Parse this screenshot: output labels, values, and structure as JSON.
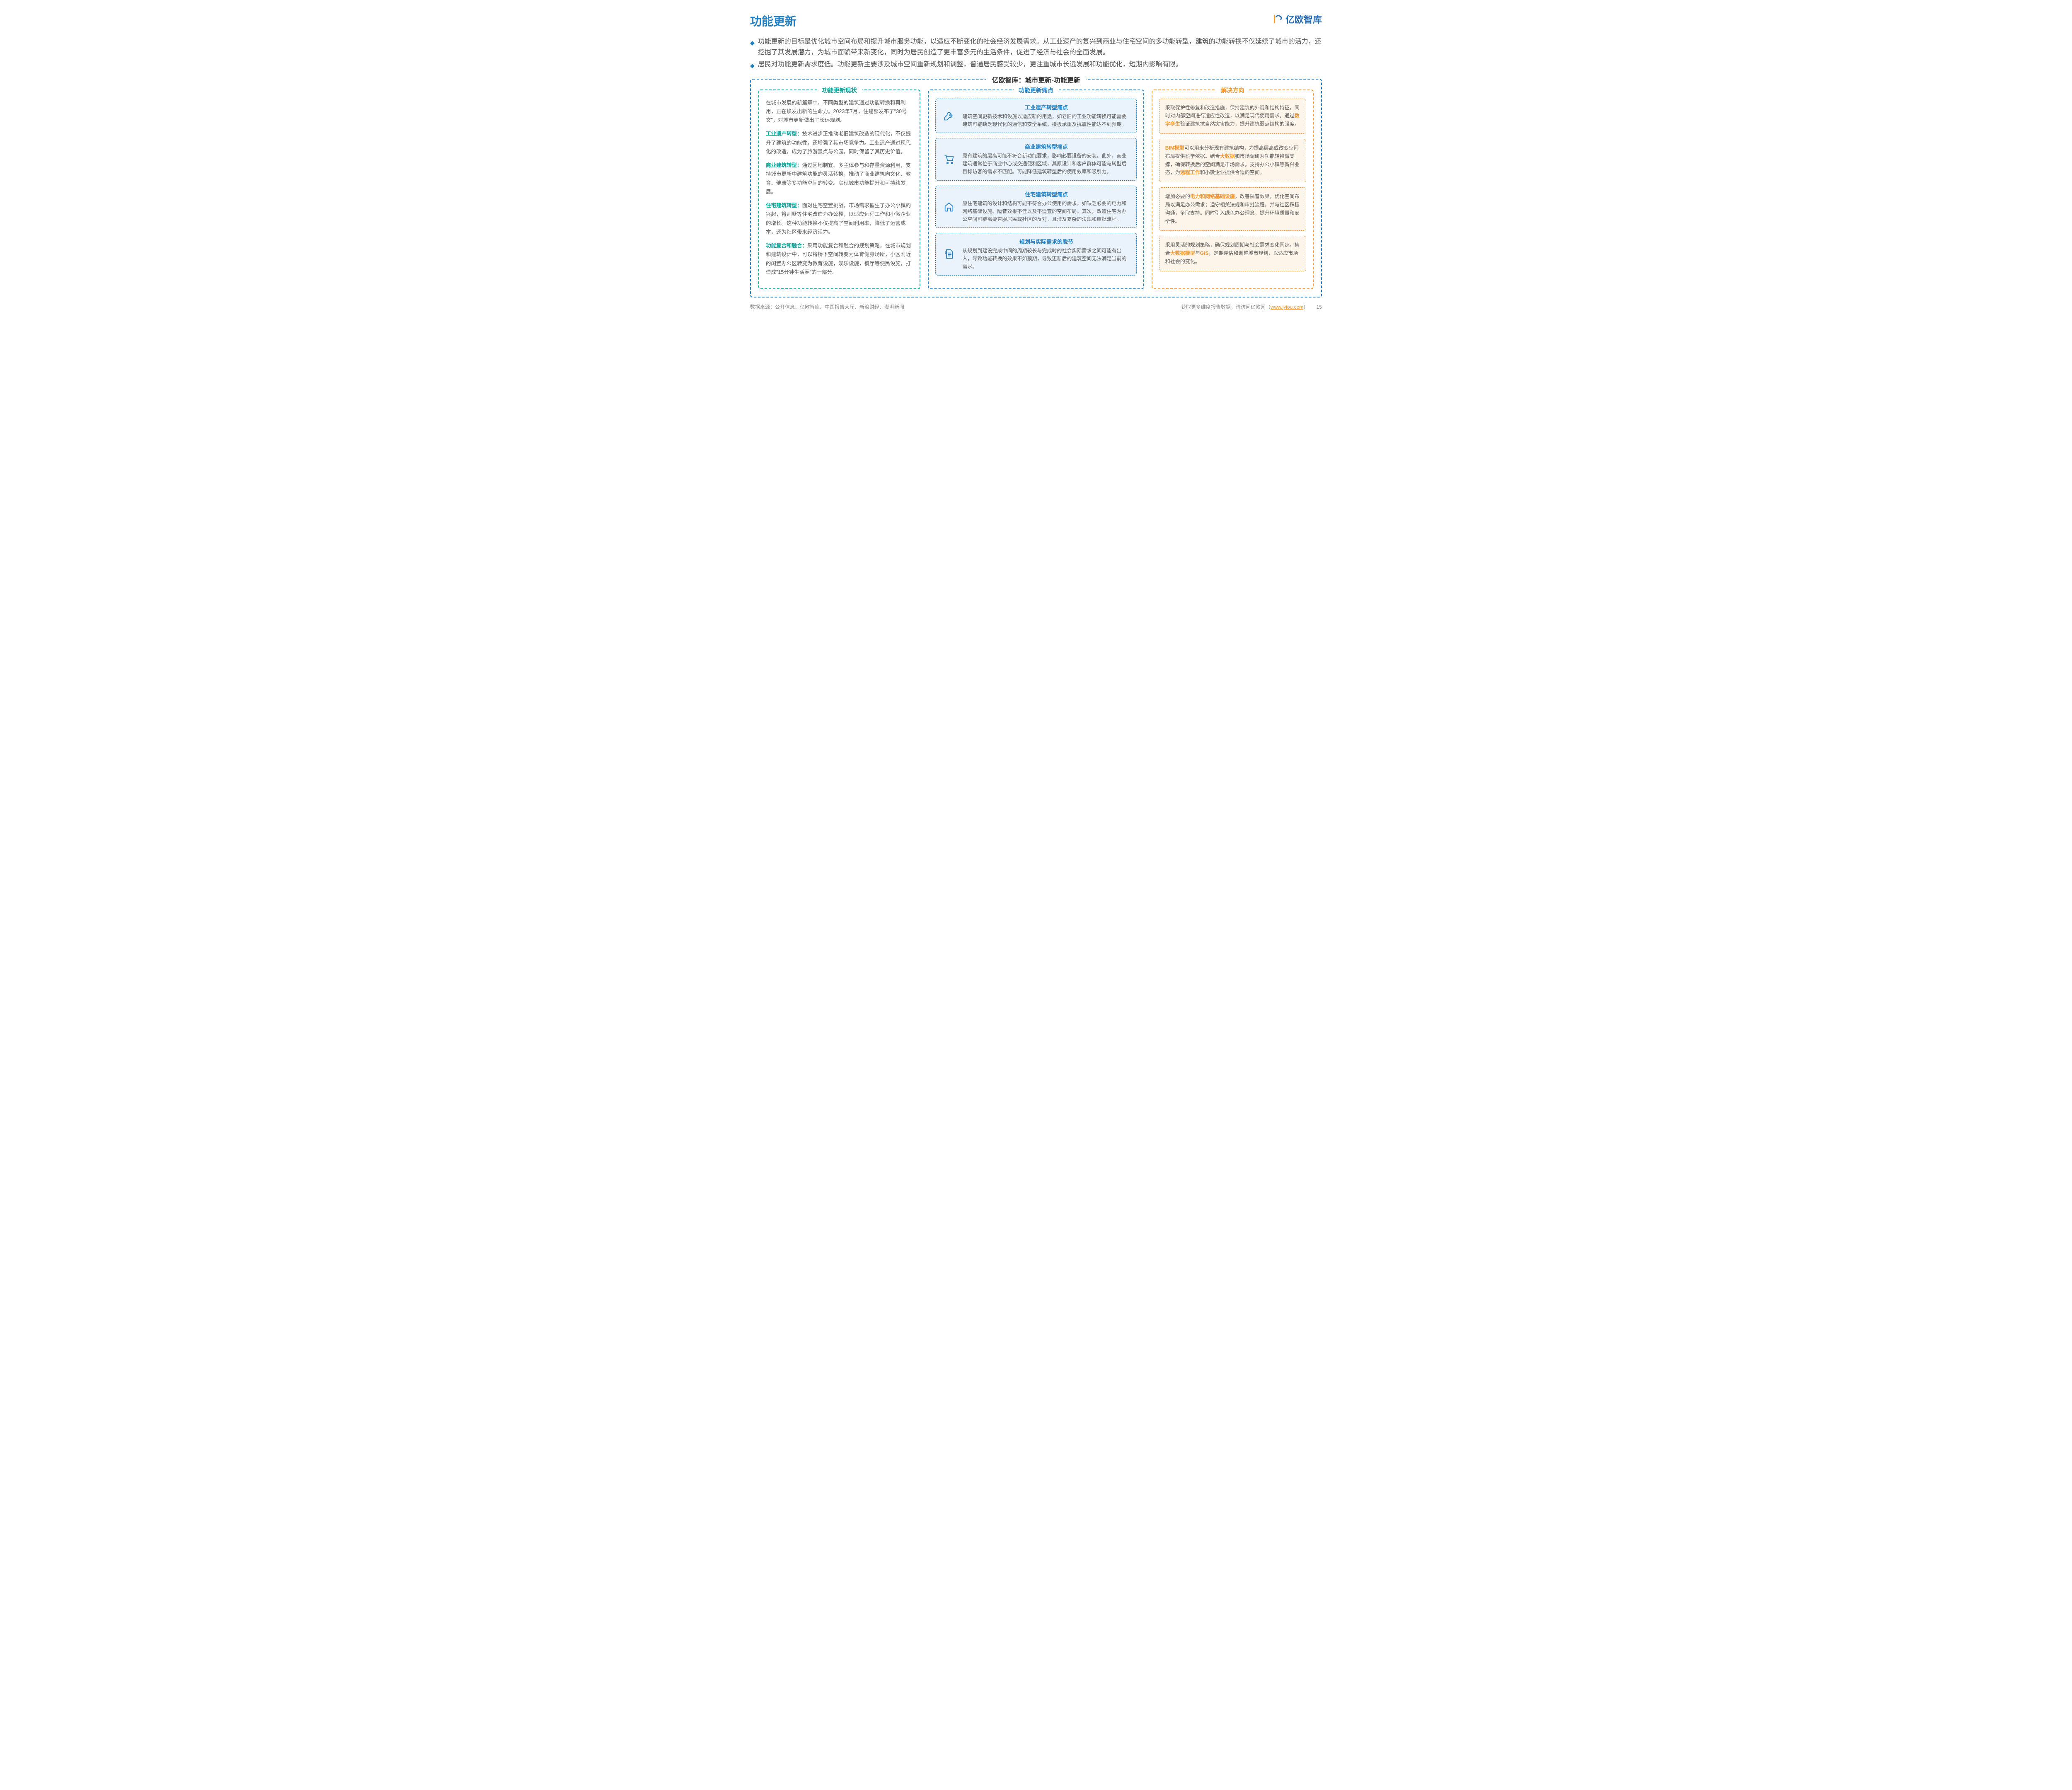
{
  "page": {
    "title": "功能更新",
    "logo_text": "亿欧智库",
    "page_number": "15"
  },
  "colors": {
    "primary_blue": "#1f7fc4",
    "teal": "#00a59b",
    "orange": "#f3962e",
    "text": "#595959",
    "blue_bg": "#eaf3fb",
    "orange_bg": "#fdf4ea"
  },
  "intro": [
    "功能更新的目标是优化城市空间布局和提升城市服务功能，以适应不断变化的社会经济发展需求。从工业遗产的复兴到商业与住宅空间的多功能转型，建筑的功能转换不仅延续了城市的活力，还挖掘了其发展潜力，为城市面貌带来新变化，同时为居民创造了更丰富多元的生活条件，促进了经济与社会的全面发展。",
    "居民对功能更新需求度低。功能更新主要涉及城市空间重新规划和调整，普通居民感受较少，更注重城市长远发展和功能优化，短期内影响有限。"
  ],
  "main_title": "亿欧智库：城市更新-功能更新",
  "col1": {
    "title": "功能更新现状",
    "intro": "在城市发展的新篇章中，不同类型的建筑通过功能转换和再利用，正在焕发出新的生命力。2023年7月，住建部发布了\"30号文\"，对城市更新做出了长远规划。",
    "items": [
      {
        "label": "工业遗产转型：",
        "text": "技术进步正推动老旧建筑改造的现代化，不仅提升了建筑的功能性，还增强了其市场竞争力。工业遗产通过现代化的改造，成为了旅游景点与公园，同时保留了其历史价值。"
      },
      {
        "label": "商业建筑转型：",
        "text": "通过因地制宜、多主体参与和存量资源利用，支持城市更新中建筑功能的灵活转换，推动了商业建筑向文化、教育、健康等多功能空间的转变。实现城市功能提升和可持续发展。"
      },
      {
        "label": "住宅建筑转型：",
        "text": "面对住宅空置挑战，市场需求催生了办公小镇的兴起，将别墅等住宅改造为办公楼，以适应远程工作和小微企业的增长。这种功能转换不仅提高了空间利用率，降低了运营成本，还为社区带来经济活力。"
      },
      {
        "label": "功能复合和融合：",
        "text": "采用功能复合和融合的规划策略，在城市规划和建筑设计中，可以将桥下空间转变为体育健身场所，小区附近的闲置办公区转变为教育设施，娱乐设施，餐厅等便民设施，打造成\"15分钟生活圈\"的一部分。"
      }
    ]
  },
  "col2": {
    "title": "功能更新痛点",
    "cards": [
      {
        "icon": "wrench",
        "title": "工业遗产转型痛点",
        "text": "建筑空间更新技术和设施以适应新的用途，如老旧的工业功能转换可能需要建筑可能缺乏现代化的通信和安全系统，楼板承重及抗震性能达不到预期。"
      },
      {
        "icon": "cart",
        "title": "商业建筑转型痛点",
        "text": "原有建筑的层高可能不符合新功能要求，影响必要设备的安装。此外，商业建筑通常位于商业中心或交通便利区域，其原设计和客户群体可能与转型后目标访客的需求不匹配。可能降低建筑转型后的使用效率和吸引力。"
      },
      {
        "icon": "home",
        "title": "住宅建筑转型痛点",
        "text": "原住宅建筑的设计和结构可能不符合办公使用的需求，如缺乏必要的电力和网络基础设施、隔音效果不佳以及不适宜的空间布局。其次，改造住宅为办公空间可能需要克服居民或社区的反对，且涉及复杂的法规和审批流程。"
      },
      {
        "icon": "doc",
        "title": "规划与实际需求的脱节",
        "text": "从规划到建设完成中间的周期较长与完成时的社会实际需求之间可能有出入，导致功能转换的效果不如预期，导致更新后的建筑空间无法满足当前的需求。"
      }
    ]
  },
  "col3": {
    "title": "解决方向",
    "cards": [
      {
        "segments": [
          {
            "t": "采取保护性修复和改造措施，保持建筑的外观和结构特征，同时对内部空间进行适应性改造，以满足现代使用需求。通过"
          },
          {
            "t": "数字孪生",
            "hl": true
          },
          {
            "t": "验证建筑抗自然灾害能力，提升建筑弱点结构的强度。"
          }
        ]
      },
      {
        "segments": [
          {
            "t": "BIM模型",
            "hl": true
          },
          {
            "t": "可以用来分析现有建筑结构，为提高层高或改变空间布局提供科学依据。结合"
          },
          {
            "t": "大数据",
            "hl": true
          },
          {
            "t": "和市场调研为功能转换做支撑，确保转换后的空间满足市场需求。支持办公小镇等新兴业态，为"
          },
          {
            "t": "远程工作",
            "hl": true
          },
          {
            "t": "和小微企业提供合适的空间。"
          }
        ]
      },
      {
        "segments": [
          {
            "t": "增加必要的"
          },
          {
            "t": "电力和网络基础设施",
            "hl": true
          },
          {
            "t": "，改善隔音效果，优化空间布局以满足办公需求；遵守相关法规和审批流程，并与社区积极沟通，争取支持。同时引入绿色办公理念，提升环境质量和安全性。"
          }
        ]
      },
      {
        "segments": [
          {
            "t": "采用灵活的规划策略，确保规划周期与社会需求变化同步。集合"
          },
          {
            "t": "大数据模型",
            "hl": true
          },
          {
            "t": "与"
          },
          {
            "t": "GIS",
            "hl": true
          },
          {
            "t": "，定期评估和调整城市规划，以适应市场和社会的变化。"
          }
        ]
      }
    ]
  },
  "footer": {
    "source": "数据来源：公开信息、亿欧智库、中国报告大厅、新浪财经、澎湃新闻",
    "cta_prefix": "获取更多维度报告数据，请访问亿欧网（",
    "cta_link": "www.iyiou.com",
    "cta_suffix": "）"
  }
}
